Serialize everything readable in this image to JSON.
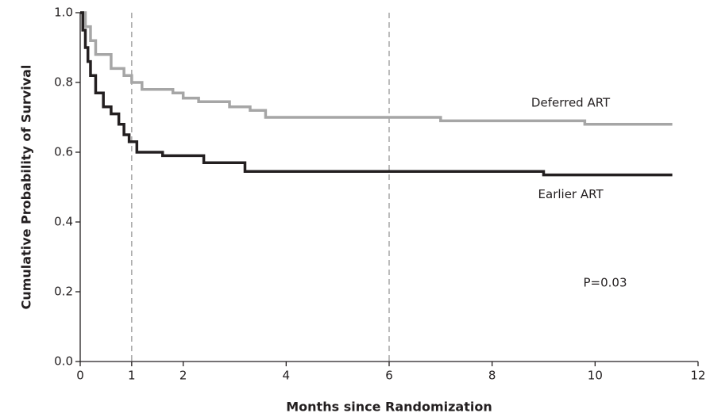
{
  "chart_data": {
    "type": "step",
    "xlabel": "Months since Randomization",
    "ylabel": "Cumulative Probability of Survival",
    "annotation": "P=0.03",
    "xlim": [
      0,
      12
    ],
    "xticks": [
      0,
      1,
      2,
      4,
      6,
      8,
      10,
      12
    ],
    "ylim": [
      0,
      1
    ],
    "yticks": [
      {
        "value": 0,
        "label": "0.0"
      },
      0.2,
      0.4,
      0.6,
      0.8,
      {
        "value": 1,
        "label": "1.0"
      }
    ],
    "vlines": [
      1,
      6
    ],
    "series": [
      {
        "name": "Deferred ART",
        "color": "#a6a6a6",
        "x": [
          0,
          0.1,
          0.2,
          0.3,
          0.6,
          0.85,
          1.0,
          1.2,
          1.8,
          2.0,
          2.3,
          2.9,
          3.3,
          3.6,
          7.0,
          9.8,
          11.5
        ],
        "values": [
          1.0,
          0.96,
          0.92,
          0.88,
          0.84,
          0.82,
          0.8,
          0.78,
          0.77,
          0.755,
          0.745,
          0.73,
          0.72,
          0.7,
          0.69,
          0.68,
          0.68
        ]
      },
      {
        "name": "Earlier ART",
        "color": "#231f20",
        "x": [
          0,
          0.05,
          0.1,
          0.15,
          0.2,
          0.3,
          0.45,
          0.6,
          0.75,
          0.85,
          0.95,
          1.1,
          1.6,
          2.4,
          3.2,
          9.0,
          11.5
        ],
        "values": [
          1.0,
          0.95,
          0.9,
          0.86,
          0.82,
          0.77,
          0.73,
          0.71,
          0.68,
          0.65,
          0.63,
          0.6,
          0.59,
          0.57,
          0.545,
          0.535,
          0.535
        ]
      }
    ]
  }
}
